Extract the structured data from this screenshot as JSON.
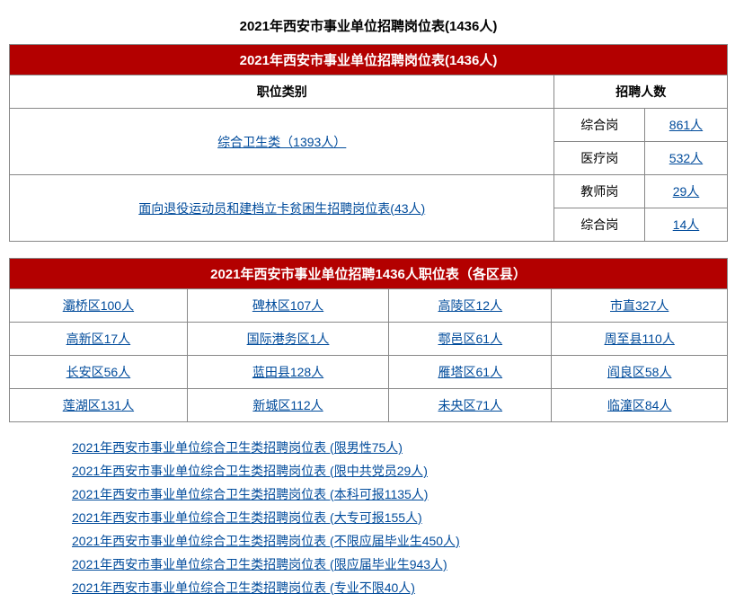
{
  "page_title": "2021年西安市事业单位招聘岗位表(1436人)",
  "table1": {
    "banner": "2021年西安市事业单位招聘岗位表(1436人)",
    "col1_header": "职位类别",
    "col2_header": "招聘人数",
    "rows": [
      {
        "category": "综合卫生类（1393人）",
        "sub": [
          {
            "label": "综合岗",
            "count": "861人"
          },
          {
            "label": "医疗岗",
            "count": "532人"
          }
        ]
      },
      {
        "category": "面向退役运动员和建档立卡贫困生招聘岗位表(43人)",
        "sub": [
          {
            "label": "教师岗",
            "count": "29人"
          },
          {
            "label": "综合岗",
            "count": "14人"
          }
        ]
      }
    ]
  },
  "table2": {
    "banner": "2021年西安市事业单位招聘1436人职位表（各区县）",
    "grid": [
      [
        "灞桥区100人",
        "碑林区107人",
        "高陵区12人",
        "市直327人"
      ],
      [
        "高新区17人",
        "国际港务区1人",
        "鄠邑区61人",
        "周至县110人"
      ],
      [
        "长安区56人",
        "蓝田县128人",
        "雁塔区61人",
        "阎良区58人"
      ],
      [
        "莲湖区131人",
        "新城区112人",
        "未央区71人",
        "临潼区84人"
      ]
    ]
  },
  "bottom_links": [
    "2021年西安市事业单位综合卫生类招聘岗位表 (限男性75人)",
    "2021年西安市事业单位综合卫生类招聘岗位表 (限中共党员29人)",
    "2021年西安市事业单位综合卫生类招聘岗位表 (本科可报1135人)",
    "2021年西安市事业单位综合卫生类招聘岗位表 (大专可报155人)",
    "2021年西安市事业单位综合卫生类招聘岗位表 (不限应届毕业生450人)",
    "2021年西安市事业单位综合卫生类招聘岗位表 (限应届毕业生943人)",
    "2021年西安市事业单位综合卫生类招聘岗位表 (专业不限40人)"
  ],
  "colors": {
    "banner_bg": "#b30000",
    "banner_text": "#ffffff",
    "link_color": "#004b9b",
    "border_color": "#888888",
    "page_bg": "#ffffff"
  }
}
